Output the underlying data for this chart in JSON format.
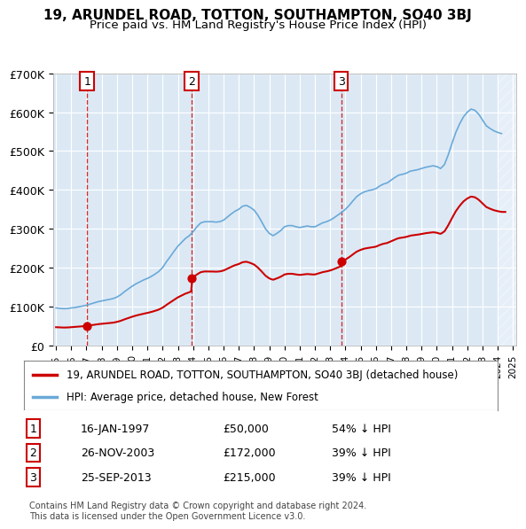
{
  "title": "19, ARUNDEL ROAD, TOTTON, SOUTHAMPTON, SO40 3BJ",
  "subtitle": "Price paid vs. HM Land Registry's House Price Index (HPI)",
  "ylabel": "",
  "ylim": [
    0,
    700000
  ],
  "yticks": [
    0,
    100000,
    200000,
    300000,
    400000,
    500000,
    600000,
    700000
  ],
  "ytick_labels": [
    "£0",
    "£100K",
    "£200K",
    "£300K",
    "£400K",
    "£500K",
    "£600K",
    "£700K"
  ],
  "background_color": "#ffffff",
  "plot_bg_color": "#dce9f5",
  "grid_color": "#ffffff",
  "hpi_line_color": "#6aa9d8",
  "price_line_color": "#cc0000",
  "sale_marker_color": "#cc0000",
  "vline_color": "#cc0000",
  "legend_label_price": "19, ARUNDEL ROAD, TOTTON, SOUTHAMPTON, SO40 3BJ (detached house)",
  "legend_label_hpi": "HPI: Average price, detached house, New Forest",
  "transactions": [
    {
      "date": "1997-01-16",
      "price": 50000,
      "label": "1",
      "pct": "54% ↓ HPI",
      "label_date": "16-JAN-1997",
      "label_price": "£50,000"
    },
    {
      "date": "2003-11-26",
      "price": 172000,
      "label": "2",
      "pct": "39% ↓ HPI",
      "label_date": "26-NOV-2003",
      "label_price": "£172,000"
    },
    {
      "date": "2013-09-25",
      "price": 215000,
      "label": "3",
      "pct": "39% ↓ HPI",
      "label_date": "25-SEP-2013",
      "label_price": "£215,000"
    }
  ],
  "footer": "Contains HM Land Registry data © Crown copyright and database right 2024.\nThis data is licensed under the Open Government Licence v3.0.",
  "hpi_data": {
    "dates": [
      1995.0,
      1995.25,
      1995.5,
      1995.75,
      1996.0,
      1996.25,
      1996.5,
      1996.75,
      1997.0,
      1997.25,
      1997.5,
      1997.75,
      1998.0,
      1998.25,
      1998.5,
      1998.75,
      1999.0,
      1999.25,
      1999.5,
      1999.75,
      2000.0,
      2000.25,
      2000.5,
      2000.75,
      2001.0,
      2001.25,
      2001.5,
      2001.75,
      2002.0,
      2002.25,
      2002.5,
      2002.75,
      2003.0,
      2003.25,
      2003.5,
      2003.75,
      2004.0,
      2004.25,
      2004.5,
      2004.75,
      2005.0,
      2005.25,
      2005.5,
      2005.75,
      2006.0,
      2006.25,
      2006.5,
      2006.75,
      2007.0,
      2007.25,
      2007.5,
      2007.75,
      2008.0,
      2008.25,
      2008.5,
      2008.75,
      2009.0,
      2009.25,
      2009.5,
      2009.75,
      2010.0,
      2010.25,
      2010.5,
      2010.75,
      2011.0,
      2011.25,
      2011.5,
      2011.75,
      2012.0,
      2012.25,
      2012.5,
      2012.75,
      2013.0,
      2013.25,
      2013.5,
      2013.75,
      2014.0,
      2014.25,
      2014.5,
      2014.75,
      2015.0,
      2015.25,
      2015.5,
      2015.75,
      2016.0,
      2016.25,
      2016.5,
      2016.75,
      2017.0,
      2017.25,
      2017.5,
      2017.75,
      2018.0,
      2018.25,
      2018.5,
      2018.75,
      2019.0,
      2019.25,
      2019.5,
      2019.75,
      2020.0,
      2020.25,
      2020.5,
      2020.75,
      2021.0,
      2021.25,
      2021.5,
      2021.75,
      2022.0,
      2022.25,
      2022.5,
      2022.75,
      2023.0,
      2023.25,
      2023.5,
      2023.75,
      2024.0,
      2024.25
    ],
    "values": [
      96000,
      95000,
      94000,
      94500,
      96000,
      97000,
      99000,
      101000,
      103000,
      106000,
      109000,
      112000,
      114000,
      116000,
      118000,
      120000,
      124000,
      130000,
      138000,
      145000,
      152000,
      158000,
      163000,
      168000,
      172000,
      177000,
      183000,
      190000,
      200000,
      215000,
      228000,
      242000,
      255000,
      265000,
      275000,
      282000,
      292000,
      305000,
      315000,
      318000,
      318000,
      318000,
      317000,
      318000,
      322000,
      330000,
      338000,
      345000,
      350000,
      358000,
      360000,
      355000,
      348000,
      335000,
      318000,
      300000,
      288000,
      282000,
      288000,
      295000,
      305000,
      308000,
      308000,
      305000,
      303000,
      305000,
      307000,
      305000,
      305000,
      310000,
      315000,
      318000,
      322000,
      328000,
      335000,
      342000,
      350000,
      360000,
      372000,
      383000,
      390000,
      395000,
      398000,
      400000,
      403000,
      410000,
      415000,
      418000,
      425000,
      432000,
      438000,
      440000,
      443000,
      448000,
      450000,
      452000,
      455000,
      458000,
      460000,
      462000,
      460000,
      455000,
      465000,
      490000,
      520000,
      548000,
      570000,
      588000,
      600000,
      608000,
      605000,
      595000,
      580000,
      565000,
      558000,
      552000,
      548000,
      545000
    ]
  },
  "price_data": {
    "dates": [
      1997.04,
      2003.9,
      2013.73
    ],
    "values": [
      50000,
      172000,
      215000
    ]
  }
}
